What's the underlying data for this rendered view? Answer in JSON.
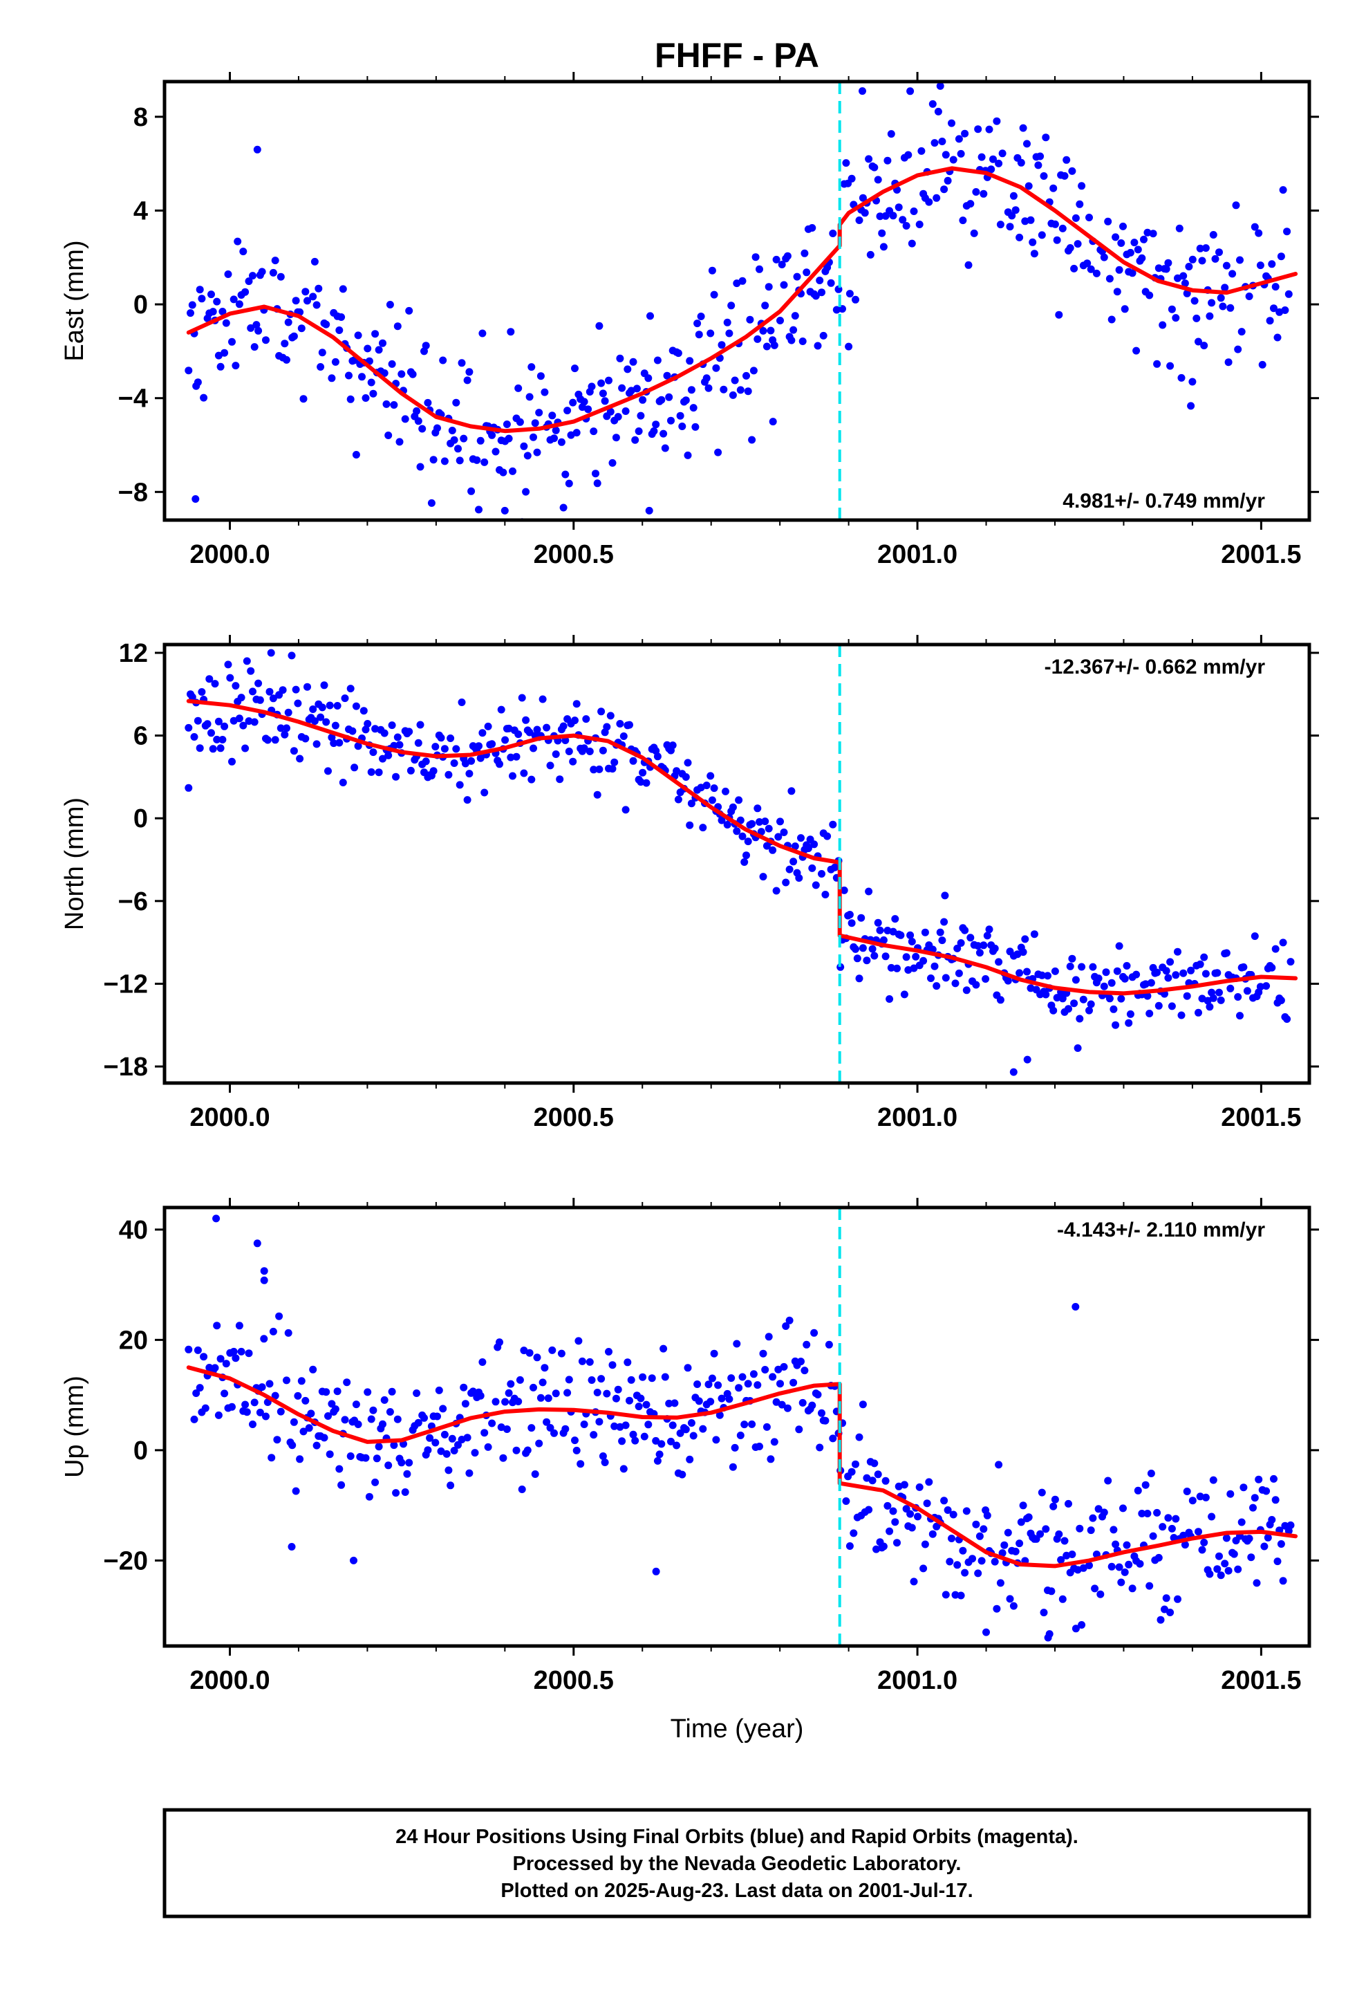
{
  "title": "FHFF - PA",
  "xlabel": "Time (year)",
  "footer": {
    "lines": [
      "24 Hour Positions Using Final Orbits (blue) and Rapid Orbits (magenta).",
      "Processed by the Nevada Geodetic Laboratory.",
      "Plotted on 2025-Aug-23. Last data on 2001-Jul-17."
    ]
  },
  "colors": {
    "points": "#0000ff",
    "fit": "#ff0000",
    "break_line": "#00e5ee",
    "frame": "#000000"
  },
  "chart_data": [
    {
      "type": "scatter",
      "name": "east",
      "ylabel": "East (mm)",
      "rate_label": "4.981+/- 0.749 mm/yr",
      "rate_position": "bottom-right",
      "xlim": [
        1999.905,
        2001.57
      ],
      "ylim": [
        -9.2,
        9.5
      ],
      "x_ticks": [
        2000.0,
        2000.5,
        2001.0,
        2001.5
      ],
      "x_tick_labels": [
        "2000.0",
        "2000.5",
        "2001.0",
        "2001.5"
      ],
      "y_ticks": [
        -8,
        -4,
        0,
        4,
        8
      ],
      "y_tick_labels": [
        "−8",
        "−4",
        "0",
        "4",
        "8"
      ],
      "break_epoch": 2000.887,
      "fit": {
        "pre": [
          [
            1999.94,
            -1.2
          ],
          [
            2000.0,
            -0.4
          ],
          [
            2000.05,
            -0.1
          ],
          [
            2000.1,
            -0.5
          ],
          [
            2000.15,
            -1.4
          ],
          [
            2000.2,
            -2.6
          ],
          [
            2000.25,
            -3.8
          ],
          [
            2000.3,
            -4.8
          ],
          [
            2000.35,
            -5.2
          ],
          [
            2000.4,
            -5.4
          ],
          [
            2000.45,
            -5.3
          ],
          [
            2000.5,
            -5.0
          ],
          [
            2000.55,
            -4.4
          ],
          [
            2000.6,
            -3.8
          ],
          [
            2000.65,
            -3.1
          ],
          [
            2000.7,
            -2.3
          ],
          [
            2000.75,
            -1.4
          ],
          [
            2000.8,
            -0.3
          ],
          [
            2000.85,
            1.3
          ],
          [
            2000.887,
            2.5
          ]
        ],
        "post": [
          [
            2000.887,
            3.4
          ],
          [
            2000.9,
            3.9
          ],
          [
            2000.95,
            4.8
          ],
          [
            2001.0,
            5.5
          ],
          [
            2001.05,
            5.8
          ],
          [
            2001.1,
            5.6
          ],
          [
            2001.15,
            5.0
          ],
          [
            2001.2,
            4.0
          ],
          [
            2001.25,
            2.9
          ],
          [
            2001.3,
            1.8
          ],
          [
            2001.35,
            1.0
          ],
          [
            2001.4,
            0.6
          ],
          [
            2001.45,
            0.5
          ],
          [
            2001.5,
            0.9
          ],
          [
            2001.55,
            1.3
          ]
        ]
      },
      "noise": 1.7,
      "seed": 11,
      "outliers": [
        [
          2000.04,
          6.6
        ],
        [
          2000.92,
          9.1
        ],
        [
          2000.79,
          -5.0
        ],
        [
          1999.95,
          -8.3
        ],
        [
          2000.61,
          -8.8
        ],
        [
          2000.4,
          -8.8
        ],
        [
          2000.9,
          -1.8
        ],
        [
          2001.4,
          -3.3
        ]
      ]
    },
    {
      "type": "scatter",
      "name": "north",
      "ylabel": "North (mm)",
      "rate_label": "-12.367+/- 0.662 mm/yr",
      "rate_position": "top-right",
      "xlim": [
        1999.905,
        2001.57
      ],
      "ylim": [
        -19.2,
        12.6
      ],
      "x_ticks": [
        2000.0,
        2000.5,
        2001.0,
        2001.5
      ],
      "x_tick_labels": [
        "2000.0",
        "2000.5",
        "2001.0",
        "2001.5"
      ],
      "y_ticks": [
        -18,
        -12,
        -6,
        0,
        6,
        12
      ],
      "y_tick_labels": [
        "−18",
        "−12",
        "−6",
        "0",
        "6",
        "12"
      ],
      "break_epoch": 2000.887,
      "fit": {
        "pre": [
          [
            1999.94,
            8.5
          ],
          [
            2000.0,
            8.2
          ],
          [
            2000.05,
            7.7
          ],
          [
            2000.1,
            7.0
          ],
          [
            2000.15,
            6.2
          ],
          [
            2000.2,
            5.4
          ],
          [
            2000.25,
            4.8
          ],
          [
            2000.3,
            4.5
          ],
          [
            2000.35,
            4.6
          ],
          [
            2000.4,
            5.1
          ],
          [
            2000.45,
            5.8
          ],
          [
            2000.5,
            6.0
          ],
          [
            2000.55,
            5.6
          ],
          [
            2000.6,
            4.4
          ],
          [
            2000.65,
            2.6
          ],
          [
            2000.7,
            0.8
          ],
          [
            2000.75,
            -0.8
          ],
          [
            2000.8,
            -2.0
          ],
          [
            2000.85,
            -2.9
          ],
          [
            2000.887,
            -3.2
          ]
        ],
        "post": [
          [
            2000.887,
            -8.5
          ],
          [
            2000.95,
            -9.2
          ],
          [
            2001.0,
            -9.6
          ],
          [
            2001.05,
            -10.1
          ],
          [
            2001.1,
            -10.8
          ],
          [
            2001.15,
            -11.7
          ],
          [
            2001.2,
            -12.3
          ],
          [
            2001.25,
            -12.6
          ],
          [
            2001.3,
            -12.7
          ],
          [
            2001.35,
            -12.5
          ],
          [
            2001.4,
            -12.2
          ],
          [
            2001.45,
            -11.8
          ],
          [
            2001.5,
            -11.5
          ],
          [
            2001.55,
            -11.6
          ]
        ]
      },
      "noise": 1.5,
      "seed": 23,
      "outliers": [
        [
          2001.16,
          -17.5
        ],
        [
          2001.14,
          -18.4
        ],
        [
          2000.06,
          12.0
        ],
        [
          2000.09,
          11.8
        ],
        [
          1999.94,
          2.2
        ],
        [
          2001.04,
          -5.6
        ]
      ]
    },
    {
      "type": "scatter",
      "name": "up",
      "ylabel": "Up (mm)",
      "rate_label": "-4.143+/- 2.110 mm/yr",
      "rate_position": "top-right",
      "xlim": [
        1999.905,
        2001.57
      ],
      "ylim": [
        -35.5,
        44
      ],
      "x_ticks": [
        2000.0,
        2000.5,
        2001.0,
        2001.5
      ],
      "x_tick_labels": [
        "2000.0",
        "2000.5",
        "2001.0",
        "2001.5"
      ],
      "y_ticks": [
        -20,
        0,
        20,
        40
      ],
      "y_tick_labels": [
        "−20",
        "0",
        "20",
        "40"
      ],
      "break_epoch": 2000.887,
      "fit": {
        "pre": [
          [
            1999.94,
            15.0
          ],
          [
            2000.0,
            13.0
          ],
          [
            2000.05,
            10.0
          ],
          [
            2000.1,
            6.5
          ],
          [
            2000.15,
            3.5
          ],
          [
            2000.2,
            1.5
          ],
          [
            2000.25,
            1.8
          ],
          [
            2000.3,
            3.8
          ],
          [
            2000.35,
            5.8
          ],
          [
            2000.4,
            7.0
          ],
          [
            2000.45,
            7.4
          ],
          [
            2000.5,
            7.3
          ],
          [
            2000.55,
            6.8
          ],
          [
            2000.6,
            6.0
          ],
          [
            2000.65,
            5.9
          ],
          [
            2000.7,
            6.8
          ],
          [
            2000.75,
            8.5
          ],
          [
            2000.8,
            10.3
          ],
          [
            2000.85,
            11.7
          ],
          [
            2000.887,
            12.0
          ]
        ],
        "post": [
          [
            2000.887,
            -6.0
          ],
          [
            2000.95,
            -7.3
          ],
          [
            2001.0,
            -10.5
          ],
          [
            2001.05,
            -14.5
          ],
          [
            2001.1,
            -18.5
          ],
          [
            2001.15,
            -20.7
          ],
          [
            2001.2,
            -21.0
          ],
          [
            2001.25,
            -20.0
          ],
          [
            2001.3,
            -18.5
          ],
          [
            2001.35,
            -17.3
          ],
          [
            2001.4,
            -16.0
          ],
          [
            2001.45,
            -15.0
          ],
          [
            2001.5,
            -14.8
          ],
          [
            2001.55,
            -15.6
          ]
        ]
      },
      "noise": 6.0,
      "seed": 37,
      "outliers": [
        [
          1999.98,
          42.0
        ],
        [
          2000.04,
          37.5
        ],
        [
          2000.05,
          32.5
        ],
        [
          2000.05,
          30.8
        ],
        [
          2001.23,
          26.0
        ],
        [
          2000.62,
          -22.0
        ],
        [
          2000.09,
          -17.5
        ],
        [
          2000.18,
          -20.0
        ],
        [
          2001.19,
          -34.0
        ],
        [
          2001.1,
          -33.0
        ]
      ]
    }
  ]
}
